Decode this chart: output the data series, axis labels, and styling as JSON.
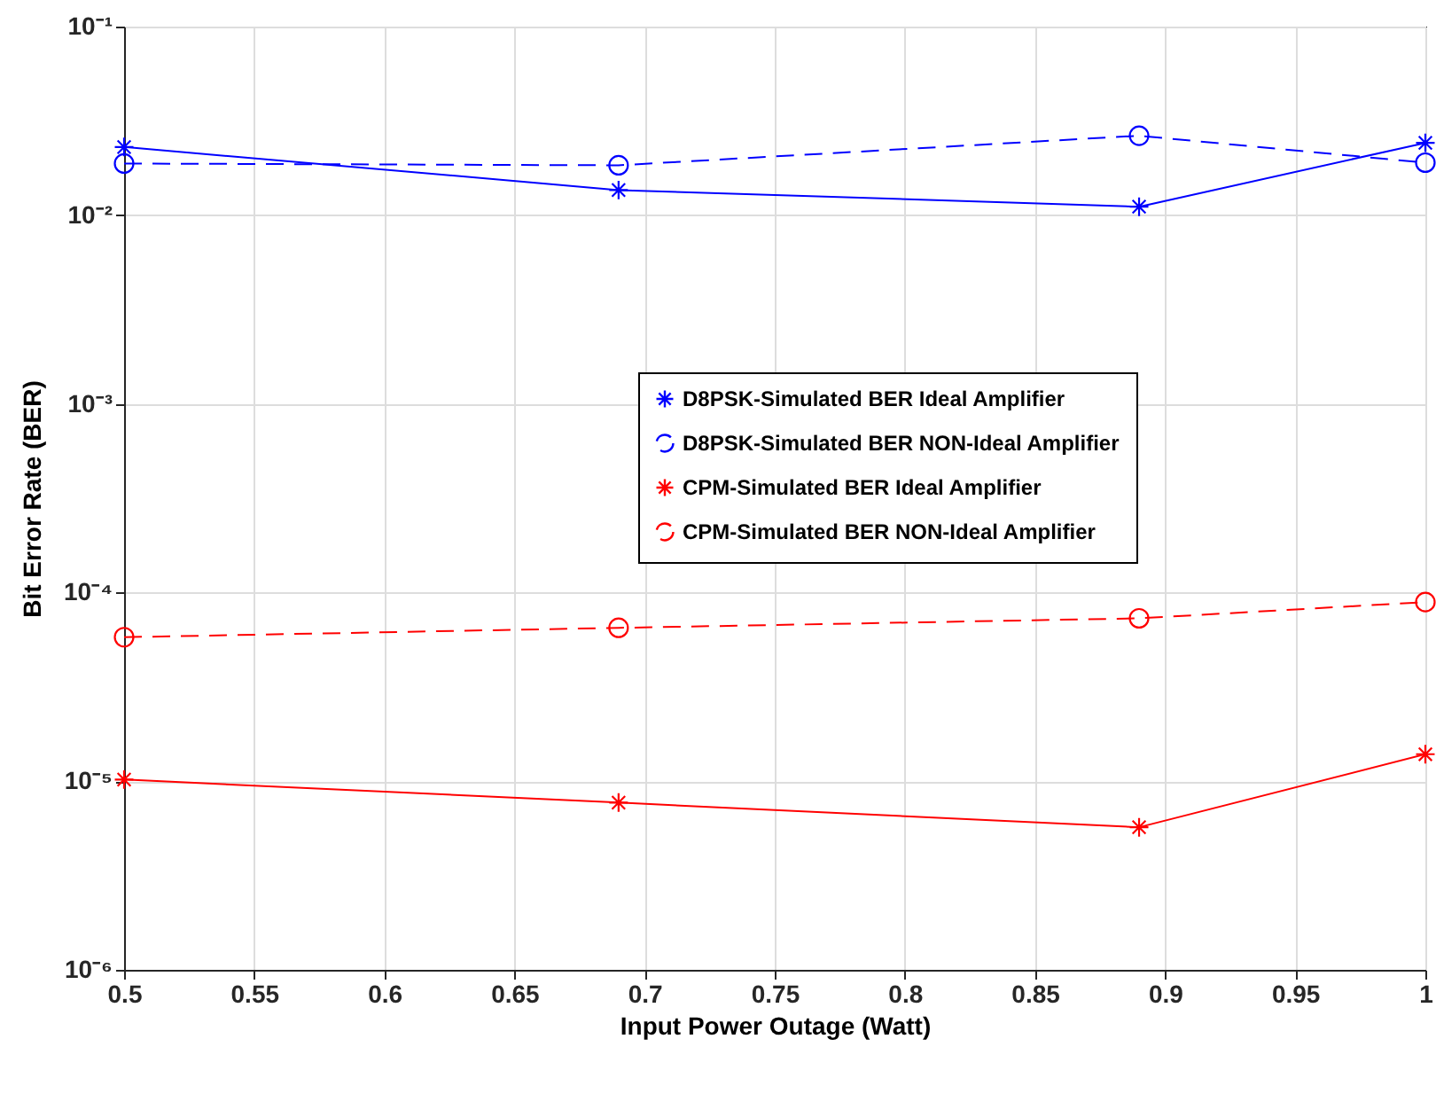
{
  "chart_data": {
    "type": "line",
    "xlabel": "Input Power Outage (Watt)",
    "ylabel": "Bit Error Rate (BER)",
    "x": [
      0.5,
      0.69,
      0.89,
      1.0
    ],
    "series": [
      {
        "name": "D8PSK-Simulated BER Ideal Amplifier",
        "color": "#0000ff",
        "marker": "cross",
        "line_style": "solid",
        "values": [
          0.023,
          0.0136,
          0.0111,
          0.0242
        ]
      },
      {
        "name": "D8PSK-Simulated BER NON-Ideal Amplifier",
        "color": "#0000ff",
        "marker": "circle",
        "line_style": "dashed",
        "values": [
          0.0188,
          0.0184,
          0.0264,
          0.019
        ]
      },
      {
        "name": "CPM-Simulated BER Ideal Amplifier",
        "color": "#ff0000",
        "marker": "cross",
        "line_style": "solid",
        "values": [
          1.02e-05,
          7.7e-06,
          5.7e-06,
          1.39e-05
        ]
      },
      {
        "name": "CPM-Simulated BER NON-Ideal Amplifier",
        "color": "#ff0000",
        "marker": "circle",
        "line_style": "dashed",
        "values": [
          5.8e-05,
          6.5e-05,
          7.3e-05,
          8.9e-05
        ]
      }
    ],
    "log": "y",
    "grid": true,
    "legend": "right",
    "xlim": [
      0.5,
      1
    ],
    "xticks": [
      0.5,
      0.55,
      0.6,
      0.65,
      0.7,
      0.75,
      0.8,
      0.85,
      0.9,
      0.95,
      1
    ],
    "ylim": [
      1e-06,
      0.1
    ],
    "yticks": [
      {
        "value": 1e-06,
        "label": "10⁻⁶"
      },
      {
        "value": 1e-05,
        "label": "10⁻⁵"
      },
      {
        "value": 0.0001,
        "label": "10⁻⁴"
      },
      {
        "value": 0.001,
        "label": "10⁻³"
      },
      {
        "value": 0.01,
        "label": "10⁻²"
      },
      {
        "value": 0.1,
        "label": "10⁻¹"
      }
    ]
  }
}
